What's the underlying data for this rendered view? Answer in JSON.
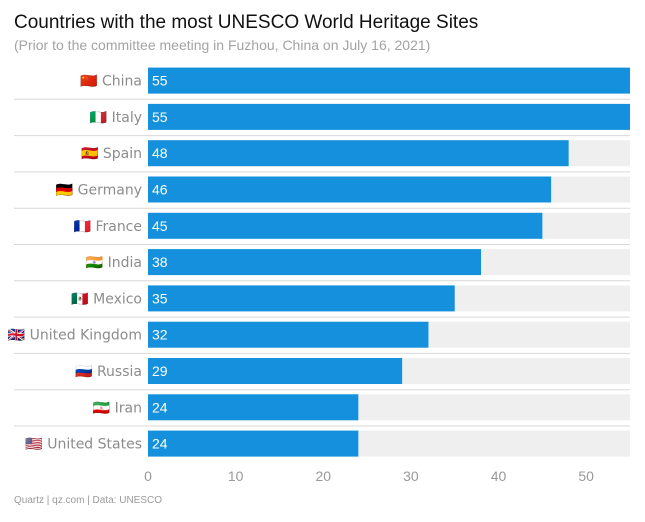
{
  "chart_data": {
    "type": "bar",
    "orientation": "horizontal",
    "title": "Countries with the most UNESCO World Heritage Sites",
    "subtitle": "(Prior to the committee meeting in Fuzhou, China on July 16, 2021)",
    "categories": [
      "🇨🇳 China",
      "🇮🇹 Italy",
      "🇪🇸 Spain",
      "🇩🇪 Germany",
      "🇫🇷 France",
      "🇮🇳 India",
      "🇲🇽 Mexico",
      "🇬🇧 United Kingdom",
      "🇷🇺 Russia",
      "🇮🇷 Iran",
      "🇺🇸 United States"
    ],
    "values": [
      55,
      55,
      48,
      46,
      45,
      38,
      35,
      32,
      29,
      24,
      24
    ],
    "xlim": [
      0,
      55
    ],
    "xticks": [
      0,
      10,
      20,
      30,
      40,
      50
    ],
    "xlabel": "",
    "ylabel": "",
    "grid": false,
    "colors": {
      "bar": "#1490dc",
      "track": "#efefef",
      "separator": "#d9d9d9"
    }
  },
  "footer": "Quartz | qz.com | Data: UNESCO"
}
